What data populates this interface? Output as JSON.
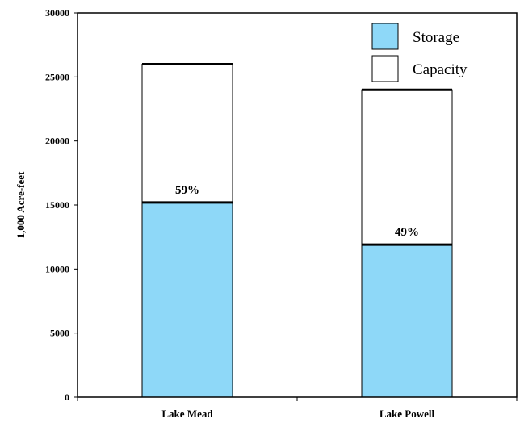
{
  "chart_data": {
    "type": "bar",
    "stacked": "overlay",
    "categories": [
      "Lake Mead",
      "Lake Powell"
    ],
    "series": [
      {
        "name": "Storage",
        "values": [
          15200,
          11900
        ],
        "color": "#8ed8f8"
      },
      {
        "name": "Capacity",
        "values": [
          26000,
          24000
        ],
        "color": "#ffffff"
      }
    ],
    "data_labels": [
      "59%",
      "49%"
    ],
    "title": "",
    "xlabel": "",
    "ylabel": "1,000 Acre-feet",
    "ylim": [
      0,
      30000
    ],
    "yticks": [
      0,
      5000,
      10000,
      15000,
      20000,
      25000,
      30000
    ],
    "grid": false,
    "legend_position": "top-right"
  }
}
